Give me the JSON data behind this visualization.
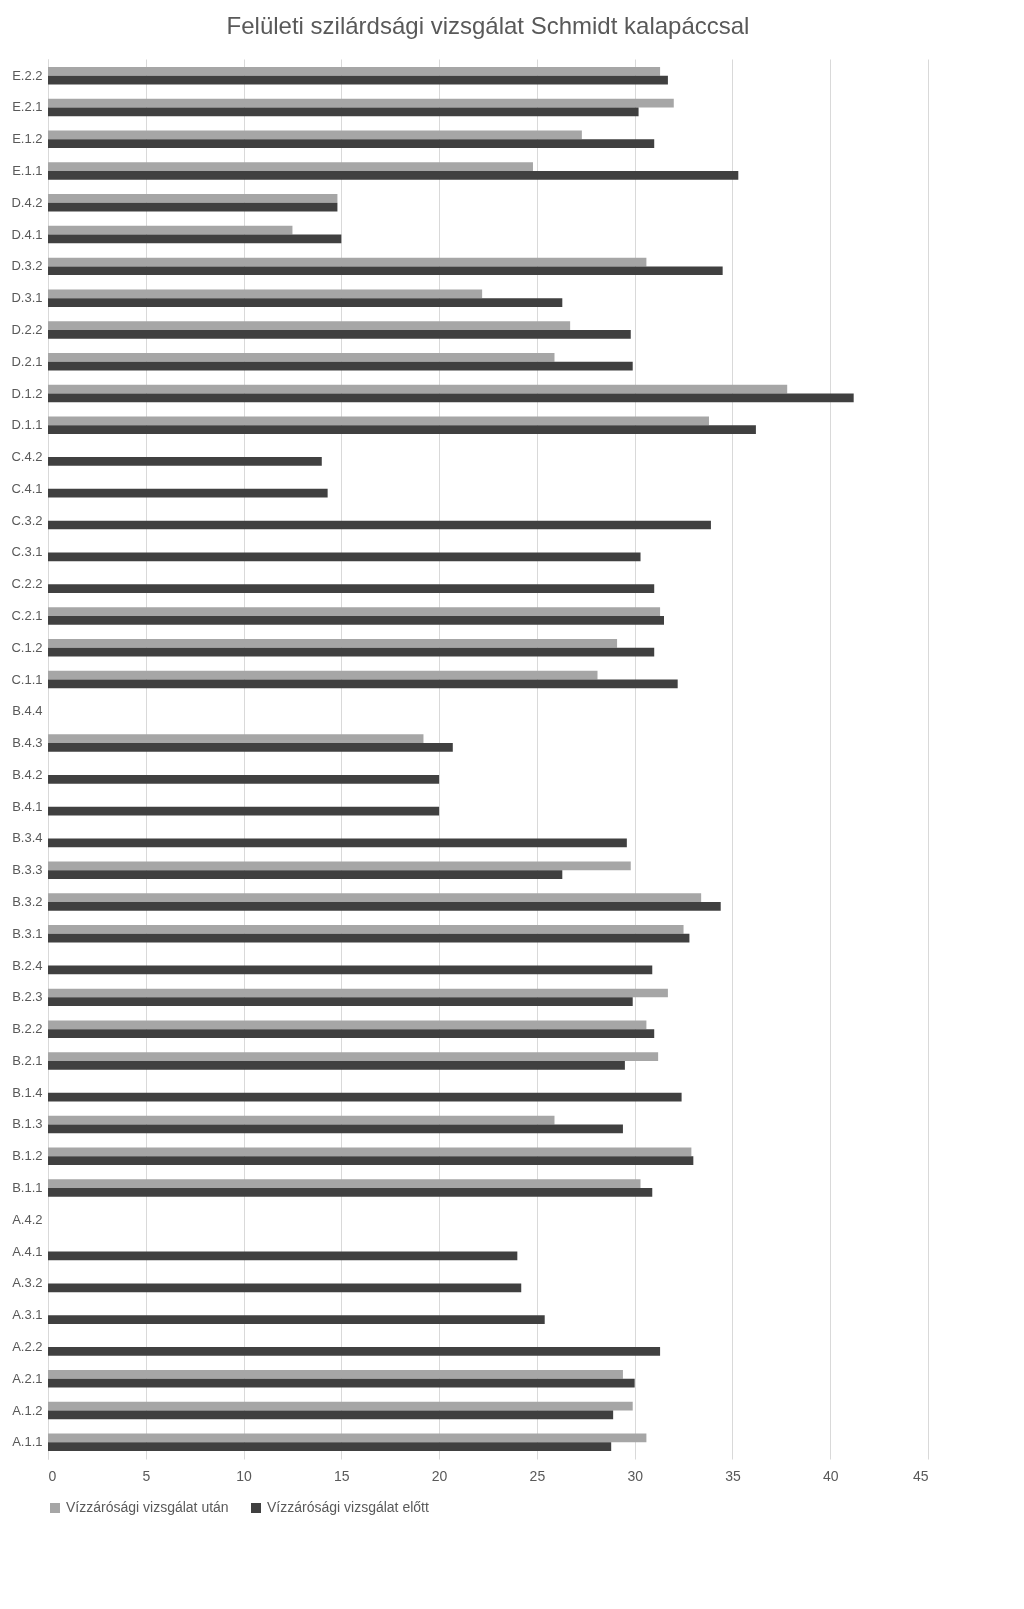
{
  "chart_data": {
    "type": "bar",
    "orientation": "horizontal",
    "title": "Felületi szilárdsági vizsgálat Schmidt kalapáccsal",
    "categories": [
      "E.2.2",
      "E.2.1",
      "E.1.2",
      "E.1.1",
      "D.4.2",
      "D.4.1",
      "D.3.2",
      "D.3.1",
      "D.2.2",
      "D.2.1",
      "D.1.2",
      "D.1.1",
      "C.4.2",
      "C.4.1",
      "C.3.2",
      "C.3.1",
      "C.2.2",
      "C.2.1",
      "C.1.2",
      "C.1.1",
      "B.4.4",
      "B.4.3",
      "B.4.2",
      "B.4.1",
      "B.3.4",
      "B.3.3",
      "B.3.2",
      "B.3.1",
      "B.2.4",
      "B.2.3",
      "B.2.2",
      "B.2.1",
      "B.1.4",
      "B.1.3",
      "B.1.2",
      "B.1.1",
      "A.4.2",
      "A.4.1",
      "A.3.2",
      "A.3.1",
      "A.2.2",
      "A.2.1",
      "A.1.2",
      "A.1.1"
    ],
    "series": [
      {
        "name": "Vízzárósági vizsgálat után",
        "color": "#a6a6a6",
        "values": [
          31.3,
          32.0,
          27.3,
          24.8,
          14.8,
          12.5,
          30.6,
          22.2,
          26.7,
          25.9,
          37.8,
          33.8,
          null,
          null,
          null,
          null,
          null,
          31.3,
          29.1,
          28.1,
          null,
          19.2,
          null,
          null,
          null,
          29.8,
          33.4,
          32.5,
          null,
          31.7,
          30.6,
          31.2,
          null,
          25.9,
          32.9,
          30.3,
          null,
          null,
          null,
          null,
          null,
          29.4,
          29.9,
          30.6
        ]
      },
      {
        "name": "Vízzárósági vizsgálat előtt",
        "color": "#404040",
        "values": [
          31.7,
          30.2,
          31.0,
          35.3,
          14.8,
          15.0,
          34.5,
          26.3,
          29.8,
          29.9,
          41.2,
          36.2,
          14.0,
          14.3,
          33.9,
          30.3,
          31.0,
          31.5,
          31.0,
          32.2,
          null,
          20.7,
          20.0,
          20.0,
          29.6,
          26.3,
          34.4,
          32.8,
          30.9,
          29.9,
          31.0,
          29.5,
          32.4,
          29.4,
          33.0,
          30.9,
          null,
          24.0,
          24.2,
          25.4,
          31.3,
          30.0,
          28.9,
          28.8
        ]
      }
    ],
    "xlim": [
      0,
      45
    ],
    "xticks": [
      0,
      5,
      10,
      15,
      20,
      25,
      30,
      35,
      40,
      45
    ],
    "grid": "x",
    "legend": "bottom"
  }
}
